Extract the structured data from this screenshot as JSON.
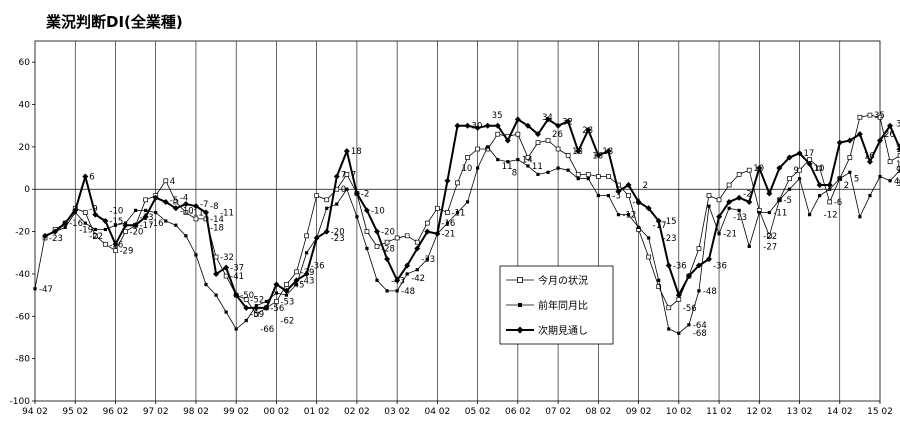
{
  "chart_data": {
    "type": "line",
    "title": "業況判断DI(全業種)",
    "xlabel": "",
    "ylabel": "",
    "ylim": [
      -100,
      70
    ],
    "yticks": [
      60,
      40,
      20,
      0,
      -20,
      -40,
      -60,
      -80,
      -100
    ],
    "x_labels": [
      "94 02",
      "95 02",
      "96 02",
      "97 02",
      "98 02",
      "99 02",
      "00 02",
      "01 02",
      "02 02",
      "03 02",
      "04 02",
      "05 02",
      "06 02",
      "07 02",
      "08 02",
      "09 02",
      "10 02",
      "11 02",
      "12 02",
      "13 02",
      "14 02",
      "15 02"
    ],
    "quarters_per_label": 4,
    "grid": "vertical-lines-at-year-labels",
    "legend_position": "inside-lower-middle",
    "series": [
      {
        "name": "今月の状況",
        "marker": "open-square",
        "color": "#000000",
        "line_width": 0.8,
        "values": [
          null,
          -23,
          -19,
          -16,
          -9,
          -11,
          -22,
          -26,
          -29,
          -20,
          -17,
          -5,
          -3,
          4,
          -6,
          -11,
          -14,
          -14,
          -32,
          -41,
          -50,
          -52,
          -59,
          -56,
          -53,
          -45,
          -39,
          -22,
          -3,
          -5,
          0,
          7,
          -2,
          -20,
          -27,
          -25,
          -23,
          -22,
          -25,
          -16,
          -9,
          -11,
          3,
          15,
          19,
          19,
          26,
          25,
          26,
          15,
          22,
          23,
          19,
          16,
          7,
          7,
          6,
          6,
          2,
          -3,
          -19,
          -32,
          -46,
          -56,
          -52,
          -41,
          -28,
          -3,
          -5,
          2,
          7,
          9,
          -10,
          -22,
          -5,
          5,
          9,
          14,
          10,
          -6,
          5,
          15,
          34,
          35,
          34,
          13,
          16,
          20,
          20,
          null
        ]
      },
      {
        "name": "前年同月比",
        "marker": "filled-small-square",
        "color": "#000000",
        "line_width": 0.8,
        "values": [
          -47,
          -22,
          -20,
          -18,
          -11,
          -16,
          -19,
          -19,
          -17,
          -16,
          -10,
          -10,
          -11,
          -15,
          -17,
          -22,
          -31,
          -45,
          -50,
          -58,
          -66,
          -62,
          -55,
          -53,
          -49,
          -50,
          -45,
          -30,
          -23,
          -9,
          -7,
          0,
          -13,
          -28,
          -43,
          -48,
          -48,
          -40,
          -38,
          -33,
          -21,
          -16,
          -11,
          -6,
          10,
          20,
          14,
          13,
          14,
          11,
          7,
          8,
          10,
          9,
          5,
          5,
          -3,
          -3,
          -12,
          -12,
          -18,
          -23,
          -43,
          -66,
          -68,
          -64,
          -48,
          -8,
          -21,
          -9,
          -10,
          -27,
          -11,
          -11,
          -5,
          0,
          5,
          -12,
          -3,
          0,
          5,
          8,
          -13,
          -3,
          6,
          4,
          9,
          3,
          null
        ]
      },
      {
        "name": "次期見通し",
        "marker": "filled-diamond",
        "color": "#000000",
        "line_width": 2,
        "values": [
          null,
          -22,
          -20,
          -16,
          -10,
          6,
          -12,
          -15,
          -26,
          -17,
          -17,
          -13,
          -4,
          -6,
          -9,
          -7,
          -8,
          -11,
          -40,
          -37,
          -50,
          -56,
          -56,
          -56,
          -45,
          -48,
          -43,
          -40,
          -23,
          -20,
          6,
          18,
          -2,
          -10,
          -20,
          -33,
          -43,
          -36,
          -28,
          -20,
          -21,
          4,
          30,
          30,
          29,
          30,
          30,
          23,
          33,
          30,
          26,
          33,
          30,
          32,
          18,
          28,
          16,
          18,
          -1,
          2,
          -6,
          -9,
          -15,
          -36,
          -50,
          -41,
          -36,
          -33,
          -13,
          -6,
          -4,
          -6,
          10,
          -2,
          10,
          15,
          17,
          12,
          2,
          2,
          22,
          23,
          26,
          13,
          23,
          30,
          19,
          null
        ]
      }
    ],
    "data_labels": [
      {
        "x_index": 0,
        "value": -47,
        "text": "-47"
      },
      {
        "x_index": 1,
        "value": -23,
        "text": "-23"
      },
      {
        "x_index": 3,
        "value": -16,
        "text": "-16"
      },
      {
        "x_index": 4,
        "value": -19,
        "text": "-19"
      },
      {
        "x_index": 5,
        "value": 6,
        "text": "6"
      },
      {
        "x_index": 5,
        "value": -9,
        "text": "-9"
      },
      {
        "x_index": 5,
        "value": -22,
        "text": "-22"
      },
      {
        "x_index": 7,
        "value": -10,
        "text": "-10"
      },
      {
        "x_index": 7,
        "value": -15,
        "text": "-15"
      },
      {
        "x_index": 7,
        "value": -26,
        "text": "-26"
      },
      {
        "x_index": 8,
        "value": -29,
        "text": "-29"
      },
      {
        "x_index": 9,
        "value": -20,
        "text": "-20"
      },
      {
        "x_index": 10,
        "value": -17,
        "text": "-17"
      },
      {
        "x_index": 10,
        "value": -13,
        "text": "-13"
      },
      {
        "x_index": 11,
        "value": -16,
        "text": "-16"
      },
      {
        "x_index": 13,
        "value": 4,
        "text": "4"
      },
      {
        "x_index": 13,
        "value": -5,
        "text": "-5"
      },
      {
        "x_index": 14,
        "value": -4,
        "text": "-4"
      },
      {
        "x_index": 14,
        "value": -10,
        "text": "-10"
      },
      {
        "x_index": 15,
        "value": -11,
        "text": "-11"
      },
      {
        "x_index": 16,
        "value": -7,
        "text": "-7"
      },
      {
        "x_index": 17,
        "value": -8,
        "text": "-8"
      },
      {
        "x_index": 17,
        "value": -14,
        "text": "-14"
      },
      {
        "x_index": 17,
        "value": -18,
        "text": "-18"
      },
      {
        "x_index": 18,
        "value": -11,
        "text": "-11"
      },
      {
        "x_index": 18,
        "value": -32,
        "text": "-32"
      },
      {
        "x_index": 19,
        "value": -37,
        "text": "-37"
      },
      {
        "x_index": 19,
        "value": -41,
        "text": "-41"
      },
      {
        "x_index": 20,
        "value": -50,
        "text": "-50"
      },
      {
        "x_index": 21,
        "value": -52,
        "text": "-52"
      },
      {
        "x_index": 21,
        "value": -59,
        "text": "-59"
      },
      {
        "x_index": 22,
        "value": -66,
        "text": "-66"
      },
      {
        "x_index": 23,
        "value": -56,
        "text": "-56"
      },
      {
        "x_index": 24,
        "value": -53,
        "text": "-53"
      },
      {
        "x_index": 24,
        "value": -62,
        "text": "-62"
      },
      {
        "x_index": 25,
        "value": -45,
        "text": "-45"
      },
      {
        "x_index": 26,
        "value": -39,
        "text": "-39"
      },
      {
        "x_index": 26,
        "value": -43,
        "text": "-43"
      },
      {
        "x_index": 27,
        "value": -36,
        "text": "-36"
      },
      {
        "x_index": 29,
        "value": -20,
        "text": "-20"
      },
      {
        "x_index": 29,
        "value": -23,
        "text": "-23"
      },
      {
        "x_index": 30,
        "value": 7,
        "text": "7"
      },
      {
        "x_index": 30,
        "value": 0,
        "text": "0"
      },
      {
        "x_index": 31,
        "value": 18,
        "text": "18"
      },
      {
        "x_index": 31,
        "value": 7,
        "text": "7"
      },
      {
        "x_index": 32,
        "value": -2,
        "text": "-2"
      },
      {
        "x_index": 33,
        "value": -10,
        "text": "-10"
      },
      {
        "x_index": 34,
        "value": -20,
        "text": "-20"
      },
      {
        "x_index": 34,
        "value": -28,
        "text": "-28"
      },
      {
        "x_index": 35,
        "value": -43,
        "text": "-43"
      },
      {
        "x_index": 36,
        "value": -48,
        "text": "-48"
      },
      {
        "x_index": 37,
        "value": -42,
        "text": "-42"
      },
      {
        "x_index": 38,
        "value": -33,
        "text": "-33"
      },
      {
        "x_index": 40,
        "value": -21,
        "text": "-21"
      },
      {
        "x_index": 40,
        "value": -16,
        "text": "-16"
      },
      {
        "x_index": 41,
        "value": -11,
        "text": "-11"
      },
      {
        "x_index": 42,
        "value": 10,
        "text": "10"
      },
      {
        "x_index": 43,
        "value": 30,
        "text": "30"
      },
      {
        "x_index": 45,
        "value": 35,
        "text": "35"
      },
      {
        "x_index": 46,
        "value": 11,
        "text": "11"
      },
      {
        "x_index": 47,
        "value": 8,
        "text": "8"
      },
      {
        "x_index": 48,
        "value": 14,
        "text": "14"
      },
      {
        "x_index": 49,
        "value": 11,
        "text": "11"
      },
      {
        "x_index": 50,
        "value": 34,
        "text": "34"
      },
      {
        "x_index": 51,
        "value": 26,
        "text": "26"
      },
      {
        "x_index": 52,
        "value": 32,
        "text": "32"
      },
      {
        "x_index": 53,
        "value": 18,
        "text": "18"
      },
      {
        "x_index": 54,
        "value": 28,
        "text": "28"
      },
      {
        "x_index": 55,
        "value": 16,
        "text": "16"
      },
      {
        "x_index": 56,
        "value": 18,
        "text": "18"
      },
      {
        "x_index": 57,
        "value": -3,
        "text": "-3"
      },
      {
        "x_index": 58,
        "value": -12,
        "text": "-12"
      },
      {
        "x_index": 59,
        "value": -6,
        "text": "-6"
      },
      {
        "x_index": 60,
        "value": 2,
        "text": "2"
      },
      {
        "x_index": 61,
        "value": -17,
        "text": "-17"
      },
      {
        "x_index": 62,
        "value": -23,
        "text": "-23"
      },
      {
        "x_index": 62,
        "value": -15,
        "text": "-15"
      },
      {
        "x_index": 63,
        "value": -36,
        "text": "-36"
      },
      {
        "x_index": 64,
        "value": -56,
        "text": "-56"
      },
      {
        "x_index": 65,
        "value": -68,
        "text": "-68"
      },
      {
        "x_index": 65,
        "value": -64,
        "text": "-64"
      },
      {
        "x_index": 66,
        "value": -48,
        "text": "-48"
      },
      {
        "x_index": 67,
        "value": -36,
        "text": "-36"
      },
      {
        "x_index": 68,
        "value": -21,
        "text": "-21"
      },
      {
        "x_index": 69,
        "value": -13,
        "text": "-13"
      },
      {
        "x_index": 70,
        "value": -2,
        "text": "-2"
      },
      {
        "x_index": 71,
        "value": 10,
        "text": "10"
      },
      {
        "x_index": 72,
        "value": -22,
        "text": "-22"
      },
      {
        "x_index": 72,
        "value": -27,
        "text": "-27"
      },
      {
        "x_index": 73,
        "value": -11,
        "text": "-11"
      },
      {
        "x_index": 74,
        "value": -5,
        "text": "-5"
      },
      {
        "x_index": 75,
        "value": 9,
        "text": "9"
      },
      {
        "x_index": 76,
        "value": 17,
        "text": "17"
      },
      {
        "x_index": 77,
        "value": 10,
        "text": "10"
      },
      {
        "x_index": 78,
        "value": -12,
        "text": "-12"
      },
      {
        "x_index": 79,
        "value": -6,
        "text": "-6"
      },
      {
        "x_index": 80,
        "value": 2,
        "text": "2"
      },
      {
        "x_index": 81,
        "value": 5,
        "text": "5"
      },
      {
        "x_index": 82,
        "value": 16,
        "text": "16"
      },
      {
        "x_index": 83,
        "value": 35,
        "text": "35"
      },
      {
        "x_index": 84,
        "value": 26,
        "text": "26"
      },
      {
        "x_index": 85,
        "value": 4,
        "text": "4"
      },
      {
        "x_index": 86,
        "value": 12,
        "text": "12"
      },
      {
        "x_index": 86,
        "value": 9,
        "text": "9"
      },
      {
        "x_index": 87,
        "value": 3,
        "text": "3"
      },
      {
        "x_index": 87,
        "value": 31,
        "text": "31"
      },
      {
        "x_index": 87,
        "value": 20,
        "text": "20"
      },
      {
        "x_index": 88,
        "value": 19,
        "text": "19"
      }
    ]
  }
}
